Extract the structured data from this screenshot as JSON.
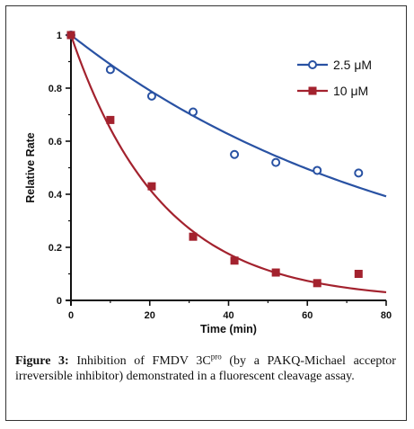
{
  "chart_data": {
    "type": "scatter",
    "title": "",
    "xlabel": "Time (min)",
    "ylabel": "Relative Rate",
    "xlim": [
      0,
      80
    ],
    "ylim": [
      0,
      1
    ],
    "xticks": [
      0,
      20,
      40,
      60,
      80
    ],
    "xtick_labels": [
      "0",
      "20",
      "40",
      "60",
      "80"
    ],
    "yticks": [
      0,
      0.2,
      0.4,
      0.6,
      0.8,
      1
    ],
    "ytick_labels": [
      "0",
      "0.2",
      "0.4",
      "0.6",
      "0.8",
      "1"
    ],
    "grid": false,
    "legend_position": "top-right",
    "series": [
      {
        "name": "2.5 μM",
        "color": "#2952a3",
        "marker": "open-circle",
        "x": [
          0,
          10,
          20.5,
          31,
          41.5,
          52,
          62.5,
          73
        ],
        "y": [
          1.0,
          0.87,
          0.77,
          0.71,
          0.55,
          0.52,
          0.49,
          0.48
        ],
        "fit": {
          "model": "exponential-decay",
          "k": 0.0117
        }
      },
      {
        "name": "10 μM",
        "color": "#a3222e",
        "marker": "filled-square",
        "x": [
          0,
          10,
          20.5,
          31,
          41.5,
          52,
          62.5,
          73
        ],
        "y": [
          1.0,
          0.68,
          0.43,
          0.24,
          0.15,
          0.105,
          0.065,
          0.1
        ],
        "fit": {
          "model": "exponential-decay",
          "k": 0.0435
        }
      }
    ]
  },
  "caption": {
    "label": "Figure 3:",
    "text_before": " Inhibition of FMDV 3C",
    "superscript": "pro",
    "text_after": " (by a PAKQ-Michael acceptor irreversible inhibitor) demonstrated in a fluorescent cleavage assay."
  }
}
